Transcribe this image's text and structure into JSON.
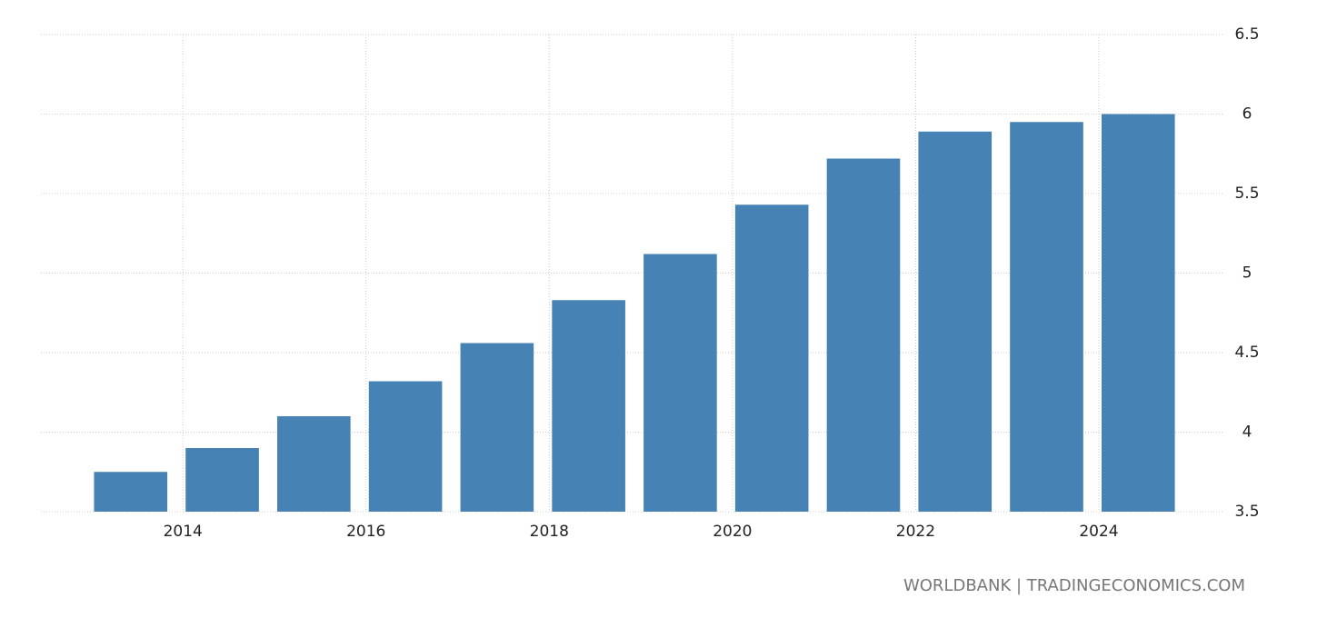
{
  "chart_data": {
    "type": "bar",
    "x": [
      2013,
      2014,
      2015,
      2016,
      2017,
      2018,
      2019,
      2020,
      2021,
      2022,
      2023,
      2024
    ],
    "values": [
      3.75,
      3.9,
      4.1,
      4.32,
      4.56,
      4.83,
      5.12,
      5.43,
      5.72,
      5.89,
      5.95,
      6.0
    ],
    "color": "#4682b4",
    "xlim": [
      2012.45,
      2025.35
    ],
    "xticks": [
      2014,
      2016,
      2018,
      2020,
      2022,
      2024
    ],
    "ylim": [
      3.5,
      6.5
    ],
    "yticks": [
      3.5,
      4,
      4.5,
      5,
      5.5,
      6,
      6.5
    ],
    "grid": true,
    "source": "WORLDBANK | TRADINGECONOMICS.COM"
  }
}
